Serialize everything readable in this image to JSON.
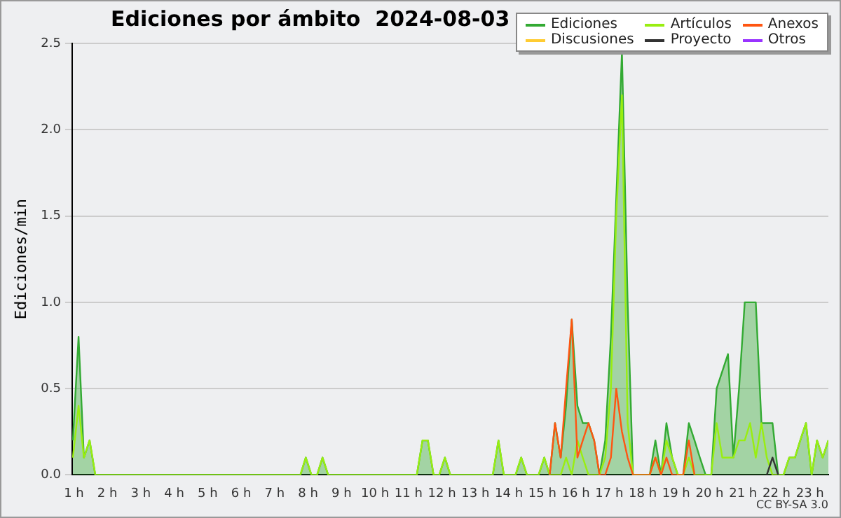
{
  "chart_data": {
    "type": "area",
    "title": "Ediciones por ámbito  2024-08-03",
    "ylabel": "Ediciones/min",
    "xlim": [
      0.95,
      23.55
    ],
    "ylim": [
      0,
      2.5
    ],
    "xticks": [
      {
        "value": 1,
        "label": "1 h"
      },
      {
        "value": 2,
        "label": "2 h"
      },
      {
        "value": 3,
        "label": "3 h"
      },
      {
        "value": 4,
        "label": "4 h"
      },
      {
        "value": 5,
        "label": "5 h"
      },
      {
        "value": 6,
        "label": "6 h"
      },
      {
        "value": 7,
        "label": "7 h"
      },
      {
        "value": 8,
        "label": "8 h"
      },
      {
        "value": 9,
        "label": "9 h"
      },
      {
        "value": 10,
        "label": "10 h"
      },
      {
        "value": 11,
        "label": "11 h"
      },
      {
        "value": 12,
        "label": "12 h"
      },
      {
        "value": 13,
        "label": "13 h"
      },
      {
        "value": 14,
        "label": "14 h"
      },
      {
        "value": 15,
        "label": "15 h"
      },
      {
        "value": 16,
        "label": "16 h"
      },
      {
        "value": 17,
        "label": "17 h"
      },
      {
        "value": 18,
        "label": "18 h"
      },
      {
        "value": 19,
        "label": "19 h"
      },
      {
        "value": 20,
        "label": "20 h"
      },
      {
        "value": 21,
        "label": "21 h"
      },
      {
        "value": 22,
        "label": "22 h"
      },
      {
        "value": 23,
        "label": "23 h"
      }
    ],
    "yticks": [
      {
        "value": 0,
        "label": "0.0"
      },
      {
        "value": 0.5,
        "label": "0.5"
      },
      {
        "value": 1,
        "label": "1.0"
      },
      {
        "value": 1.5,
        "label": "1.5"
      },
      {
        "value": 2,
        "label": "2.0"
      },
      {
        "value": 2.5,
        "label": "2.5"
      }
    ],
    "grid": "y",
    "legend": "top right",
    "marker": "none",
    "annotations": [
      "CC BY-SA 3.0"
    ],
    "series": [
      {
        "name": "Ediciones",
        "type": "area",
        "color": "#33aa33",
        "x": [
          0.97,
          1.14,
          1.3,
          1.47,
          1.64,
          7.77,
          7.93,
          8.1,
          8.27,
          8.43,
          8.6,
          11.25,
          11.42,
          11.58,
          11.75,
          11.92,
          12.09,
          12.25,
          13.52,
          13.69,
          13.85,
          14.2,
          14.37,
          14.54,
          14.89,
          15.06,
          15.22,
          15.38,
          15.55,
          15.71,
          15.88,
          16.05,
          16.21,
          16.38,
          16.55,
          16.71,
          16.88,
          17.05,
          17.21,
          17.38,
          17.55,
          17.71,
          18.21,
          18.38,
          18.55,
          18.71,
          18.88,
          19.05,
          19.21,
          19.38,
          19.55,
          19.71,
          19.88,
          20.05,
          20.21,
          20.38,
          20.55,
          20.71,
          20.88,
          21.05,
          21.21,
          21.38,
          21.55,
          21.71,
          21.88,
          22.05,
          22.21,
          22.38,
          22.55,
          22.71,
          22.88,
          23.05,
          23.21,
          23.38,
          23.55
        ],
        "values": [
          0.2,
          0.8,
          0.1,
          0.2,
          0,
          0,
          0.1,
          0,
          0,
          0.1,
          0,
          0,
          0.2,
          0.2,
          0,
          0,
          0.1,
          0,
          0,
          0.2,
          0,
          0,
          0.1,
          0,
          0,
          0.1,
          0,
          0.3,
          0.1,
          0.4,
          0.9,
          0.4,
          0.3,
          0.3,
          0.2,
          0,
          0.2,
          0.8,
          1.6,
          2.45,
          1.0,
          0,
          0,
          0.2,
          0,
          0.3,
          0.1,
          0,
          0,
          0.3,
          0.2,
          0.1,
          0,
          0,
          0.5,
          0.6,
          0.7,
          0.1,
          0.5,
          1.0,
          1.0,
          1.0,
          0.3,
          0.3,
          0.3,
          0,
          0,
          0.1,
          0.1,
          0.2,
          0.3,
          0,
          0.2,
          0.1,
          0.2
        ]
      },
      {
        "name": "Artículos",
        "type": "line",
        "color": "#99ee11",
        "x": [
          0.97,
          1.14,
          1.3,
          1.47,
          1.64,
          7.77,
          7.93,
          8.1,
          8.27,
          8.43,
          8.6,
          11.25,
          11.42,
          11.58,
          11.75,
          11.92,
          12.09,
          12.25,
          13.52,
          13.69,
          13.85,
          14.2,
          14.37,
          14.54,
          14.89,
          15.06,
          15.22,
          15.55,
          15.71,
          15.88,
          16.05,
          16.21,
          16.38,
          16.71,
          16.88,
          17.05,
          17.21,
          17.38,
          17.55,
          17.71,
          18.21,
          18.38,
          18.55,
          18.71,
          18.88,
          19.05,
          19.21,
          19.38,
          19.55,
          20.05,
          20.21,
          20.38,
          20.55,
          20.71,
          20.88,
          21.05,
          21.21,
          21.38,
          21.55,
          21.71,
          21.88,
          22.21,
          22.38,
          22.55,
          22.71,
          22.88,
          23.05,
          23.21,
          23.38,
          23.55
        ],
        "values": [
          0.1,
          0.4,
          0.1,
          0.2,
          0,
          0,
          0.1,
          0,
          0,
          0.1,
          0,
          0,
          0.2,
          0.2,
          0,
          0,
          0.1,
          0,
          0,
          0.2,
          0,
          0,
          0.1,
          0,
          0,
          0.1,
          0,
          0,
          0.1,
          0,
          0.2,
          0.1,
          0,
          0,
          0.1,
          0.5,
          1.5,
          2.2,
          0.3,
          0,
          0,
          0.1,
          0,
          0.2,
          0.1,
          0,
          0,
          0.1,
          0,
          0,
          0.3,
          0.1,
          0.1,
          0.1,
          0.2,
          0.2,
          0.3,
          0.1,
          0.3,
          0.1,
          0,
          0,
          0.1,
          0.1,
          0.2,
          0.3,
          0,
          0.2,
          0.1,
          0.2
        ]
      },
      {
        "name": "Anexos",
        "type": "line",
        "color": "#ff5511",
        "x": [
          15.22,
          15.38,
          15.55,
          15.71,
          15.88,
          16.05,
          16.21,
          16.38,
          16.55,
          16.71,
          16.88,
          17.05,
          17.21,
          17.38,
          17.55,
          17.71,
          18.21,
          18.38,
          18.55,
          18.71,
          18.88,
          19.21,
          19.38,
          19.55
        ],
        "values": [
          0,
          0.3,
          0.1,
          0.5,
          0.9,
          0.1,
          0.2,
          0.3,
          0.2,
          0,
          0,
          0.1,
          0.5,
          0.25,
          0.1,
          0,
          0,
          0.1,
          0,
          0.1,
          0,
          0,
          0.2,
          0
        ]
      },
      {
        "name": "Discusiones",
        "type": "line",
        "color": "#ffcc33"
      },
      {
        "name": "Proyecto",
        "type": "line",
        "color": "#333333",
        "x": [
          21.71,
          21.88,
          22.05
        ],
        "values": [
          0,
          0.1,
          0
        ]
      },
      {
        "name": "Otros",
        "type": "line",
        "color": "#9933ff"
      }
    ]
  }
}
